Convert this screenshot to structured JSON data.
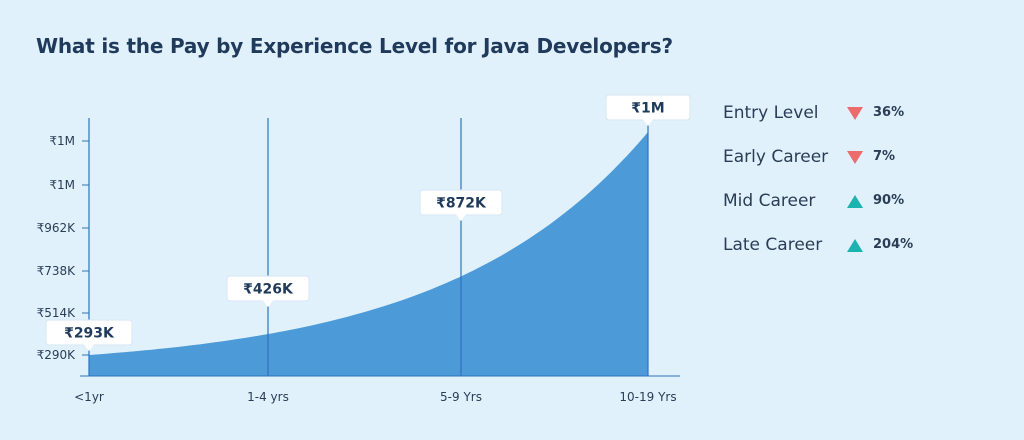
{
  "title": "What is the Pay by Experience Level for Java Developers?",
  "colors": {
    "background": "#e1f1fc",
    "area": "#4d9ad9",
    "axis": "#2b73bd",
    "decrease": "#ec6c6c",
    "increase": "#1ab3b0",
    "text": "#1f3a5a"
  },
  "chart_data": {
    "type": "area",
    "categories": [
      "<1yr",
      "1-4 yrs",
      "5-9 Yrs",
      "10-19 Yrs"
    ],
    "values": [
      293,
      426,
      872,
      1000
    ],
    "value_labels": [
      "₹293K",
      "₹426K",
      "₹872K",
      "₹1M"
    ],
    "y_ticks": [
      "₹1M",
      "₹1M",
      "₹962K",
      "₹738K",
      "₹514K",
      "₹290K"
    ],
    "grid": false,
    "title": "What is the Pay by Experience Level for Java Developers?"
  },
  "legend": [
    {
      "label": "Entry Level",
      "direction": "down",
      "value": "36%"
    },
    {
      "label": "Early Career",
      "direction": "down",
      "value": "7%"
    },
    {
      "label": "Mid Career",
      "direction": "up",
      "value": "90%"
    },
    {
      "label": "Late Career",
      "direction": "up",
      "value": "204%"
    }
  ]
}
